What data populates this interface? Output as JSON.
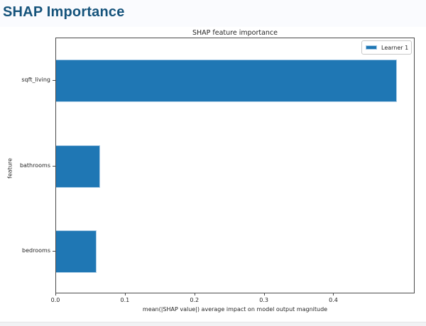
{
  "header": {
    "title": "SHAP Importance",
    "color": "#15537b"
  },
  "chart_data": {
    "type": "bar",
    "orientation": "horizontal",
    "title": "SHAP feature importance",
    "categories": [
      "sqft_living",
      "bathrooms",
      "bedrooms"
    ],
    "values": [
      0.49,
      0.063,
      0.058
    ],
    "series": [
      {
        "name": "Learner 1",
        "values": [
          0.49,
          0.063,
          0.058
        ]
      }
    ],
    "xlabel": "mean(|SHAP value|) average impact on model output magnitude",
    "ylabel": "feature",
    "xlim": [
      0,
      0.517
    ],
    "xticks": [
      0.0,
      0.1,
      0.2,
      0.3,
      0.4
    ],
    "xtick_labels": [
      "0.0",
      "0.1",
      "0.2",
      "0.3",
      "0.4"
    ],
    "grid": false,
    "legend": {
      "label": "Learner 1",
      "position": "upper right"
    },
    "bar_color": "#1f77b4",
    "bar_edge_color": "#a9cbe5"
  }
}
